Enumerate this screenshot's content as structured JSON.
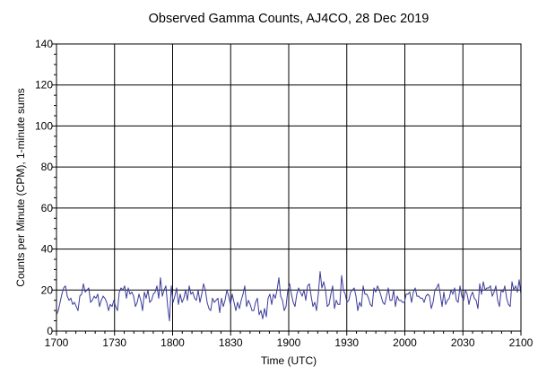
{
  "chart_data": {
    "type": "line",
    "title": "Observed Gamma Counts, AJ4CO, 28 Dec 2019",
    "xlabel": "Time (UTC)",
    "ylabel": "Counts per Minute (CPM), 1-minute sums",
    "xlim": [
      1700,
      2100
    ],
    "ylim": [
      0,
      140
    ],
    "x_ticks": [
      {
        "t": 0,
        "label": "1700"
      },
      {
        "t": 30,
        "label": "1730"
      },
      {
        "t": 60,
        "label": "1800"
      },
      {
        "t": 90,
        "label": "1830"
      },
      {
        "t": 120,
        "label": "1900"
      },
      {
        "t": 150,
        "label": "1930"
      },
      {
        "t": 180,
        "label": "2000"
      },
      {
        "t": 210,
        "label": "2030"
      },
      {
        "t": 240,
        "label": "2100"
      }
    ],
    "y_ticks": [
      0,
      20,
      40,
      60,
      80,
      100,
      120,
      140
    ],
    "grid": true,
    "line_color": "#3b3b9a",
    "series": [
      {
        "values": [
          8,
          10,
          14,
          18,
          21,
          22,
          17,
          15,
          16,
          13,
          14,
          12,
          10,
          17,
          18,
          23,
          19,
          20,
          21,
          14,
          15,
          17,
          16,
          18,
          12,
          15,
          17,
          16,
          14,
          10,
          13,
          12,
          15,
          12,
          10,
          19,
          21,
          20,
          22,
          16,
          21,
          18,
          19,
          17,
          12,
          14,
          18,
          15,
          10,
          19,
          16,
          20,
          14,
          15,
          18,
          19,
          22,
          16,
          26,
          17,
          20,
          22,
          12,
          5,
          22,
          14,
          17,
          21,
          13,
          18,
          14,
          16,
          20,
          15,
          22,
          18,
          19,
          16,
          15,
          20,
          14,
          18,
          23,
          20,
          14,
          11,
          10,
          16,
          14,
          15,
          16,
          9,
          16,
          12,
          15,
          20,
          17,
          13,
          18,
          14,
          10,
          14,
          11,
          15,
          18,
          22,
          12,
          15,
          13,
          10,
          10,
          14,
          16,
          8,
          10,
          6,
          11,
          7,
          16,
          18,
          13,
          18,
          16,
          20,
          26,
          17,
          15,
          10,
          12,
          20,
          23,
          18,
          14,
          12,
          18,
          21,
          19,
          17,
          20,
          15,
          22,
          23,
          17,
          12,
          14,
          10,
          18,
          29,
          21,
          24,
          20,
          12,
          13,
          18,
          22,
          11,
          15,
          13,
          13,
          27,
          20,
          18,
          14,
          15,
          19,
          20,
          21,
          17,
          10,
          14,
          12,
          22,
          18,
          18,
          16,
          13,
          12,
          21,
          19,
          22,
          20,
          17,
          14,
          13,
          17,
          21,
          15,
          15,
          20,
          12,
          17,
          15,
          15,
          14,
          14,
          18,
          18,
          19,
          14,
          19,
          21,
          17,
          17,
          16,
          16,
          14,
          17,
          18,
          17,
          11,
          14,
          20,
          21,
          23,
          18,
          12,
          19,
          13,
          15,
          16,
          20,
          18,
          21,
          15,
          14,
          22,
          17,
          15,
          20,
          18,
          13,
          17,
          19,
          16,
          15,
          11,
          23,
          18,
          24,
          20,
          21,
          21,
          22,
          17,
          19,
          22,
          15,
          12,
          20,
          19,
          22,
          16,
          13,
          12,
          24,
          20,
          22,
          19,
          25,
          18
        ]
      }
    ]
  }
}
